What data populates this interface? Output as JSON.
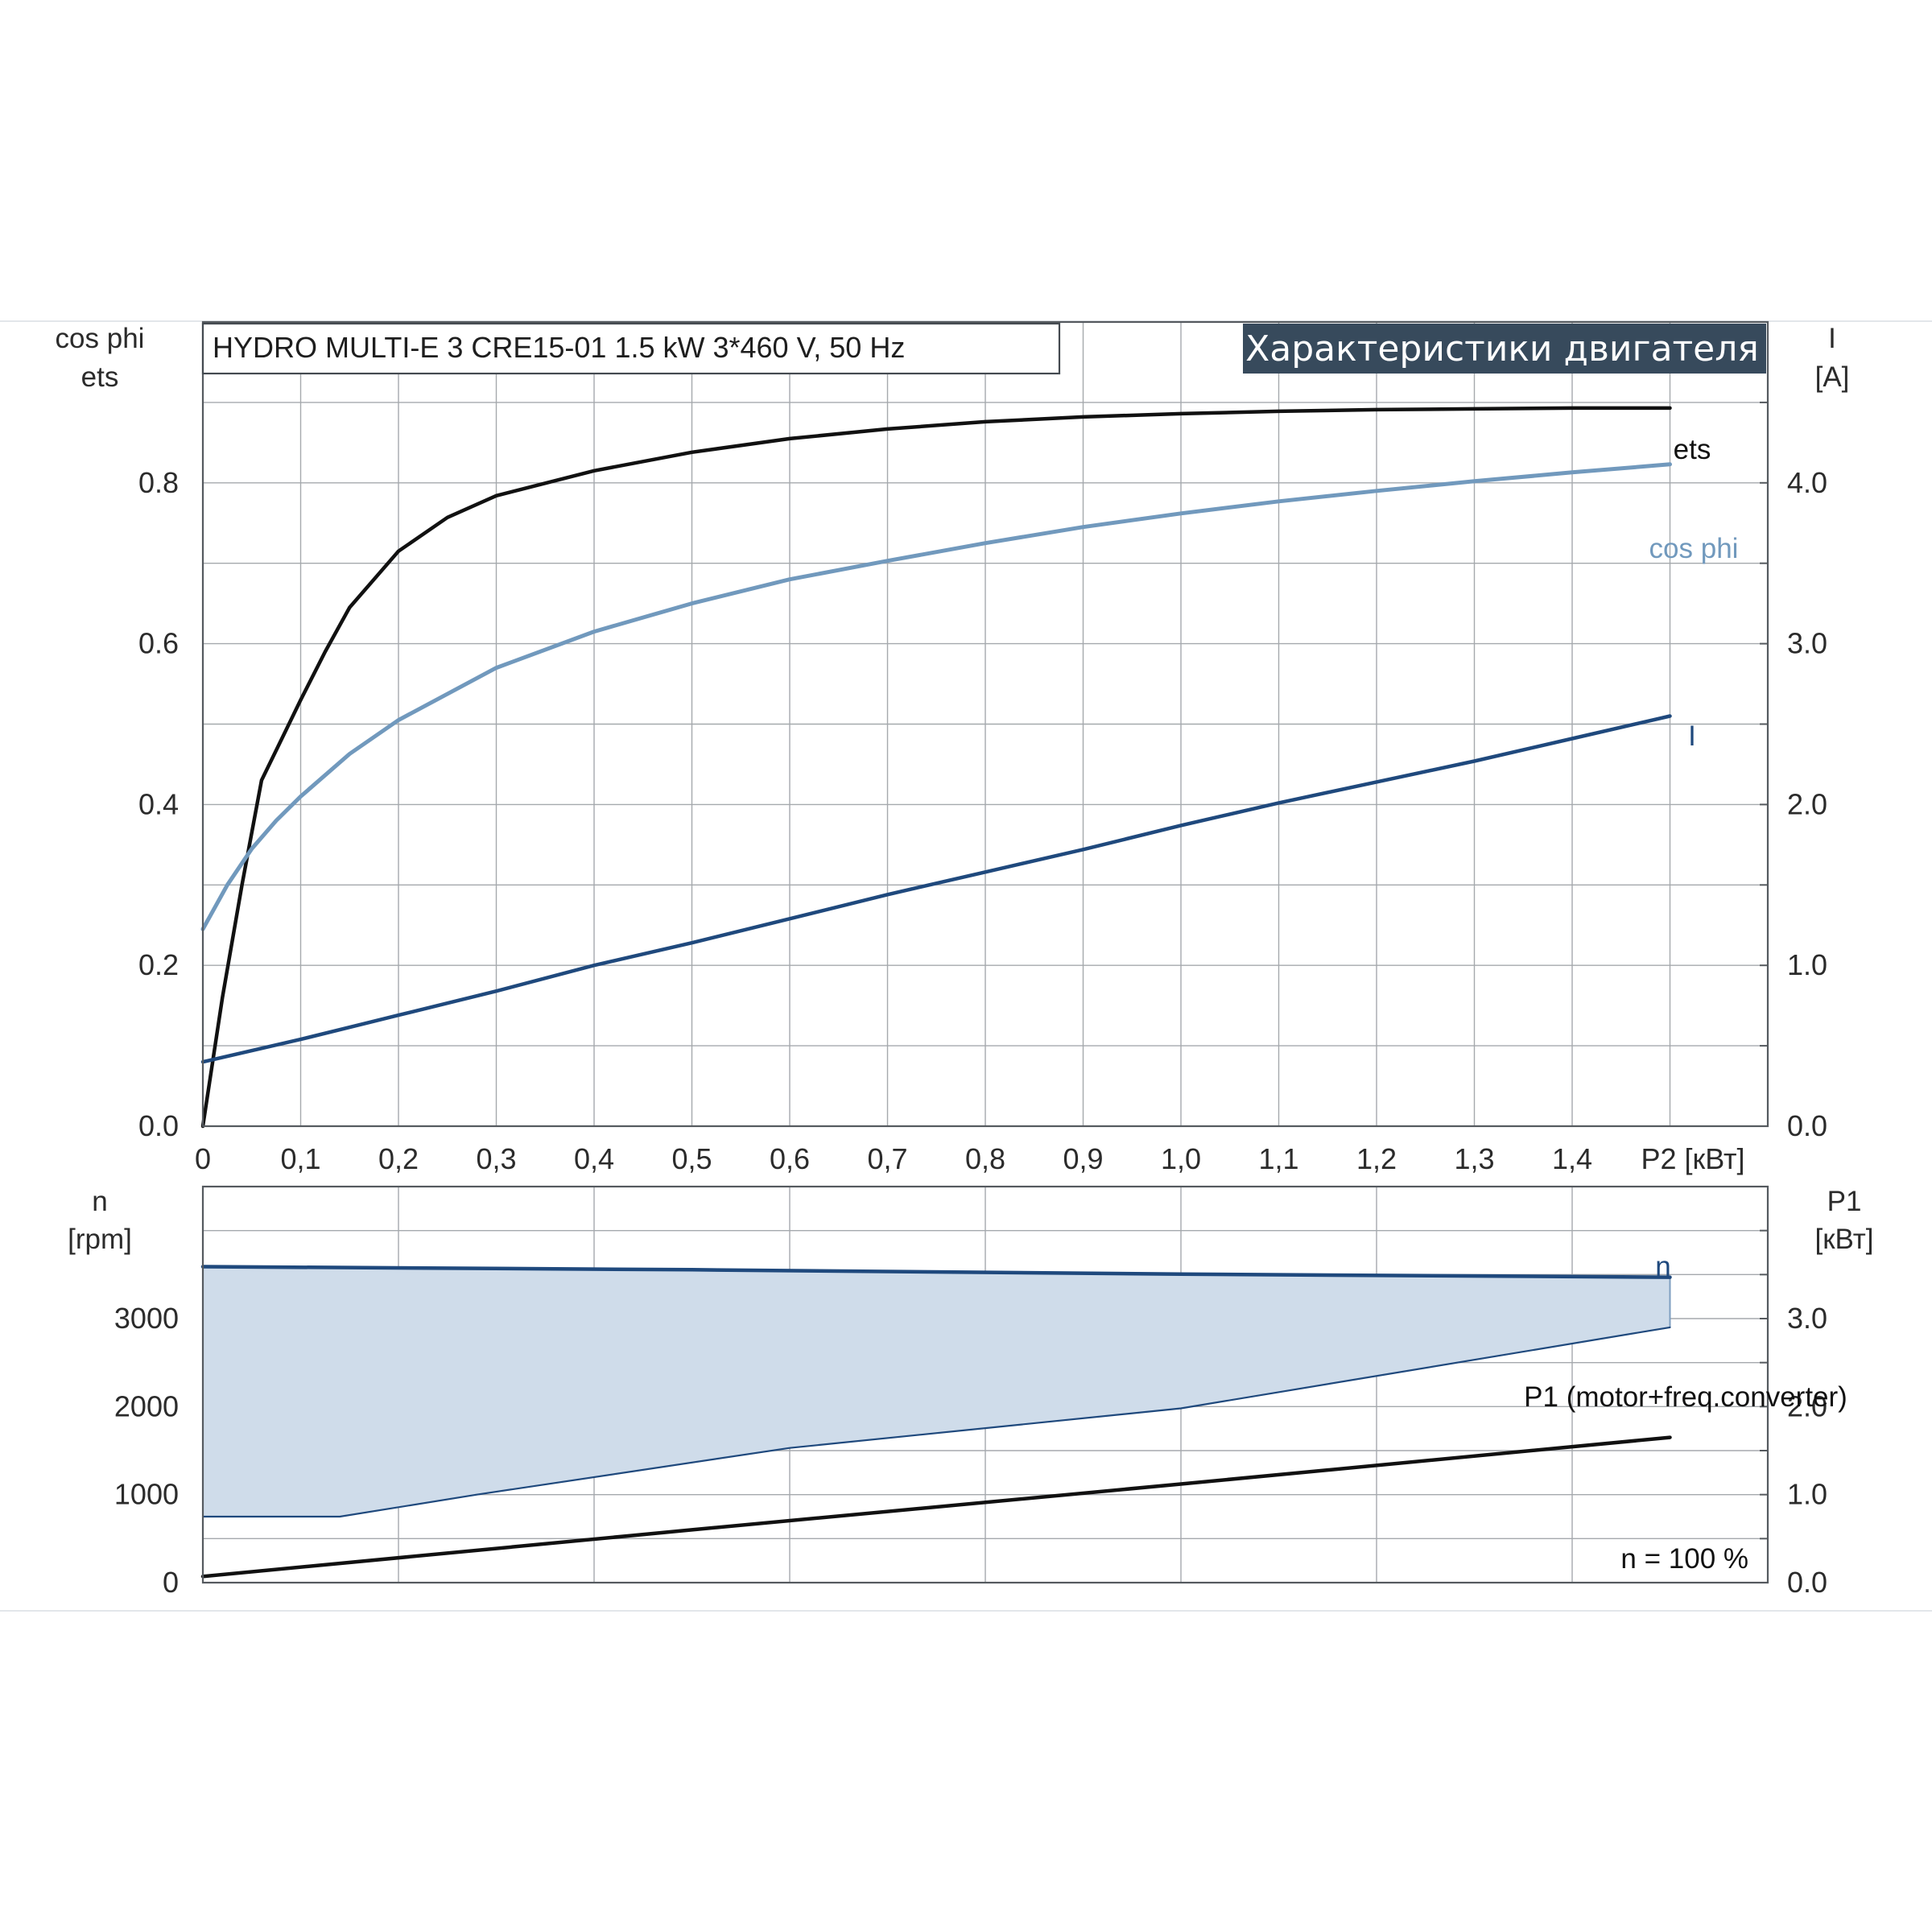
{
  "chart_data": [
    {
      "type": "line",
      "title": "Характеристики двигателя",
      "subtitle": "HYDRO MULTI-E 3 CRE15-01   1.5 kW   3*460 V, 50 Hz",
      "x_ticks": [
        "0",
        "0,1",
        "0,2",
        "0,3",
        "0,4",
        "0,5",
        "0,6",
        "0,7",
        "0,8",
        "0,9",
        "1,0",
        "1,1",
        "1,2",
        "1,3",
        "1,4"
      ],
      "xlabel": "P2 [кВт]",
      "xlim": [
        0,
        1.6
      ],
      "ylabel_left_line1": "cos phi",
      "ylabel_left_line2": "ets",
      "ylim_left": [
        0,
        1.0
      ],
      "y_left_ticks": [
        "0.0",
        "0.2",
        "0.4",
        "0.6",
        "0.8"
      ],
      "ylabel_right_line1": "I",
      "ylabel_right_line2": "[A]",
      "ylim_right": [
        0,
        5.0
      ],
      "y_right_ticks": [
        "0.0",
        "1.0",
        "2.0",
        "3.0",
        "4.0"
      ],
      "grid": true,
      "series": [
        {
          "name": "ets",
          "axis": "left",
          "color": "#111111",
          "x": [
            0,
            0.02,
            0.04,
            0.06,
            0.08,
            0.1,
            0.125,
            0.15,
            0.2,
            0.25,
            0.3,
            0.4,
            0.5,
            0.6,
            0.7,
            0.8,
            0.9,
            1.0,
            1.1,
            1.2,
            1.3,
            1.4,
            1.5
          ],
          "y": [
            0,
            0.16,
            0.3,
            0.43,
            0.48,
            0.53,
            0.59,
            0.645,
            0.715,
            0.757,
            0.784,
            0.815,
            0.838,
            0.855,
            0.867,
            0.876,
            0.882,
            0.886,
            0.889,
            0.891,
            0.892,
            0.893,
            0.893
          ]
        },
        {
          "name": "cos phi",
          "axis": "left",
          "color": "#7199bd",
          "x": [
            0,
            0.025,
            0.05,
            0.075,
            0.1,
            0.15,
            0.2,
            0.3,
            0.4,
            0.5,
            0.6,
            0.7,
            0.8,
            0.9,
            1.0,
            1.1,
            1.2,
            1.3,
            1.4,
            1.5
          ],
          "y": [
            0.245,
            0.3,
            0.345,
            0.38,
            0.41,
            0.463,
            0.505,
            0.57,
            0.615,
            0.65,
            0.68,
            0.703,
            0.725,
            0.745,
            0.762,
            0.777,
            0.79,
            0.802,
            0.813,
            0.823
          ]
        },
        {
          "name": "I",
          "axis": "right",
          "color": "#1f497d",
          "x": [
            0,
            0.1,
            0.2,
            0.3,
            0.4,
            0.5,
            0.6,
            0.7,
            0.8,
            0.9,
            1.0,
            1.1,
            1.2,
            1.3,
            1.4,
            1.5
          ],
          "y": [
            0.4,
            0.54,
            0.69,
            0.84,
            1.0,
            1.14,
            1.29,
            1.44,
            1.58,
            1.72,
            1.87,
            2.01,
            2.14,
            2.27,
            2.41,
            2.55
          ]
        }
      ]
    },
    {
      "type": "area",
      "annotation": "n = 100 %",
      "xlim": [
        0,
        1.6
      ],
      "ylabel_left_line1": "n",
      "ylabel_left_line2": "[rpm]",
      "ylim_left": [
        0,
        4500
      ],
      "y_left_ticks": [
        "0",
        "1000",
        "2000",
        "3000"
      ],
      "ylabel_right_line1": "P1",
      "ylabel_right_line2": "[кВт]",
      "ylim_right": [
        0,
        4.5
      ],
      "y_right_ticks": [
        "0.0",
        "1.0",
        "2.0",
        "3.0"
      ],
      "grid": true,
      "fill_color": "#cfdcea",
      "series": [
        {
          "name": "n",
          "axis": "left",
          "color": "#1f497d",
          "x": [
            0,
            0.5,
            1.0,
            1.5
          ],
          "y": [
            3590,
            3555,
            3505,
            3470
          ]
        },
        {
          "name": "",
          "axis": "left",
          "color": "#1f497d",
          "x": [
            0,
            0.14,
            0.28,
            0.6,
            1.0,
            1.5
          ],
          "y": [
            750,
            750,
            1000,
            1530,
            1980,
            2900
          ]
        },
        {
          "name": "P1 (motor+freq.converter)",
          "axis": "right",
          "color": "#111111",
          "x": [
            0,
            0.5,
            1.0,
            1.5
          ],
          "y": [
            0.07,
            0.6,
            1.12,
            1.65
          ]
        }
      ]
    }
  ]
}
